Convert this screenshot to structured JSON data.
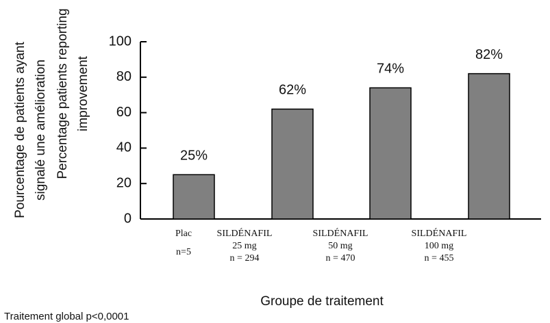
{
  "chart_data": {
    "type": "bar",
    "y_label_lines": [
      "Pourcentage de patients ayant",
      "signalé une amélioration",
      "Percentage patients reporting",
      "improvement"
    ],
    "x_label": "Groupe de traitement",
    "footnote": "Traitement global p<0,0001",
    "categories": [
      [
        "Plac",
        "n=5"
      ],
      [
        "SILDÉNAFIL",
        "25 mg",
        "n = 294"
      ],
      [
        "SILDÉNAFIL",
        "50 mg",
        "n = 470"
      ],
      [
        "SILDÉNAFIL",
        "100 mg",
        "n = 455"
      ]
    ],
    "values": [
      25,
      62,
      74,
      82
    ],
    "value_labels": [
      "25%",
      "62%",
      "74%",
      "82%"
    ],
    "color": "#808080",
    "ylim": [
      0,
      100
    ],
    "yticks": [
      0,
      20,
      40,
      60,
      80,
      100
    ]
  }
}
